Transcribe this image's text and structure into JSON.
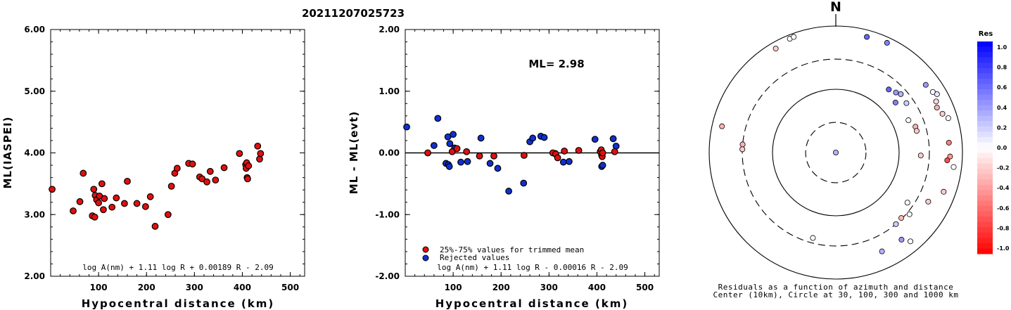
{
  "title": "20211207025723",
  "chart_data": [
    {
      "type": "scatter",
      "ylabel": "ML(IASPEI)",
      "xlabel": "Hypocentral distance (km)",
      "xlim": [
        0,
        530
      ],
      "ylim": [
        2.0,
        6.0
      ],
      "x_ticks": [
        100,
        200,
        300,
        400,
        500
      ],
      "y_ticks": [
        "2.00",
        "3.00",
        "4.00",
        "5.00",
        "6.00"
      ],
      "formula": "log A(nm) + 1.11 log R + 0.00189 R - 2.09",
      "marker_color": "#e01010",
      "points": [
        [
          3,
          3.41
        ],
        [
          47,
          3.06
        ],
        [
          61,
          3.21
        ],
        [
          68,
          3.67
        ],
        [
          87,
          2.98
        ],
        [
          90,
          3.41
        ],
        [
          92,
          2.96
        ],
        [
          93,
          3.31
        ],
        [
          96,
          3.24
        ],
        [
          100,
          3.19
        ],
        [
          102,
          3.3
        ],
        [
          107,
          3.5
        ],
        [
          110,
          3.08
        ],
        [
          112,
          3.26
        ],
        [
          128,
          3.12
        ],
        [
          137,
          3.27
        ],
        [
          154,
          3.18
        ],
        [
          160,
          3.54
        ],
        [
          180,
          3.18
        ],
        [
          198,
          3.13
        ],
        [
          208,
          3.29
        ],
        [
          218,
          2.81
        ],
        [
          245,
          3.0
        ],
        [
          252,
          3.46
        ],
        [
          259,
          3.67
        ],
        [
          264,
          3.75
        ],
        [
          288,
          3.83
        ],
        [
          296,
          3.82
        ],
        [
          311,
          3.61
        ],
        [
          316,
          3.58
        ],
        [
          326,
          3.53
        ],
        [
          333,
          3.7
        ],
        [
          344,
          3.56
        ],
        [
          362,
          3.76
        ],
        [
          394,
          3.99
        ],
        [
          407,
          3.81
        ],
        [
          408,
          3.75
        ],
        [
          409,
          3.84
        ],
        [
          410,
          3.6
        ],
        [
          411,
          3.58
        ],
        [
          413,
          3.79
        ],
        [
          432,
          4.11
        ],
        [
          436,
          3.9
        ],
        [
          438,
          3.99
        ]
      ]
    },
    {
      "type": "scatter",
      "ylabel": "ML - ML(evt)",
      "xlabel": "Hypocentral distance (km)",
      "xlim": [
        0,
        530
      ],
      "ylim": [
        -2.0,
        2.0
      ],
      "x_ticks": [
        100,
        200,
        300,
        400,
        500
      ],
      "y_ticks": [
        "-2.00",
        "-1.00",
        "0.00",
        "1.00",
        "2.00"
      ],
      "annotation": "ML= 2.98",
      "formula": "log A(nm) + 1.11 log R - 0.00016 R - 2.09",
      "legend": [
        {
          "label": "25%-75% values for trimmed mean",
          "color": "#e01010"
        },
        {
          "label": "Rejected values",
          "color": "#1030d0"
        }
      ],
      "series": [
        {
          "name": "25%-75% values for trimmed mean",
          "color": "#e01010",
          "points": [
            [
              47,
              0.0
            ],
            [
              98,
              0.02
            ],
            [
              108,
              0.07
            ],
            [
              128,
              0.02
            ],
            [
              155,
              -0.05
            ],
            [
              185,
              -0.05
            ],
            [
              248,
              -0.04
            ],
            [
              308,
              0.0
            ],
            [
              314,
              -0.02
            ],
            [
              318,
              -0.08
            ],
            [
              332,
              0.03
            ],
            [
              362,
              0.04
            ],
            [
              407,
              0.02
            ],
            [
              409,
              0.05
            ],
            [
              410,
              -0.04
            ],
            [
              411,
              -0.06
            ],
            [
              412,
              0.0
            ],
            [
              437,
              0.02
            ]
          ]
        },
        {
          "name": "Rejected values",
          "color": "#1030d0",
          "points": [
            [
              3,
              0.42
            ],
            [
              60,
              0.12
            ],
            [
              68,
              0.56
            ],
            [
              85,
              -0.17
            ],
            [
              89,
              0.26
            ],
            [
              90,
              -0.19
            ],
            [
              92,
              -0.22
            ],
            [
              93,
              0.15
            ],
            [
              100,
              0.3
            ],
            [
              103,
              0.08
            ],
            [
              116,
              -0.15
            ],
            [
              130,
              -0.14
            ],
            [
              158,
              0.24
            ],
            [
              177,
              -0.17
            ],
            [
              193,
              -0.25
            ],
            [
              216,
              -0.62
            ],
            [
              247,
              -0.49
            ],
            [
              260,
              0.18
            ],
            [
              266,
              0.24
            ],
            [
              283,
              0.27
            ],
            [
              290,
              0.25
            ],
            [
              313,
              -0.01
            ],
            [
              330,
              -0.15
            ],
            [
              342,
              -0.14
            ],
            [
              396,
              0.22
            ],
            [
              410,
              -0.22
            ],
            [
              412,
              -0.2
            ],
            [
              434,
              0.23
            ],
            [
              440,
              0.11
            ]
          ]
        }
      ]
    },
    {
      "type": "polar-scatter",
      "north_label": "N",
      "rings_km": [
        10,
        30,
        100,
        300,
        1000
      ],
      "caption_line1": "Residuals as a function of azimuth and distance",
      "caption_line2": "Center (10km), Circle at 30, 100, 300 and 1000 km",
      "colorbar": {
        "title": "Res",
        "ticks": [
          "1.0",
          "0.8",
          "0.6",
          "0.4",
          "0.2",
          "0.0",
          "-0.2",
          "-0.4",
          "-0.6",
          "-0.8",
          "-1.0"
        ]
      },
      "stations": [
        {
          "az": 90,
          "dist": 10,
          "res": 0.3
        },
        {
          "az": 15,
          "dist": 780,
          "res": 0.6
        },
        {
          "az": 25,
          "dist": 820,
          "res": 0.5
        },
        {
          "az": 40,
          "dist": 200,
          "res": 0.6
        },
        {
          "az": 45,
          "dist": 220,
          "res": 0.4
        },
        {
          "az": 48,
          "dist": 240,
          "res": 0.3
        },
        {
          "az": 50,
          "dist": 170,
          "res": 0.5
        },
        {
          "az": 55,
          "dist": 230,
          "res": 0.2
        },
        {
          "az": 53,
          "dist": 600,
          "res": 0.4
        },
        {
          "az": 58,
          "dist": 640,
          "res": 0.0
        },
        {
          "az": 60,
          "dist": 700,
          "res": 0.1
        },
        {
          "az": 63,
          "dist": 600,
          "res": -0.15
        },
        {
          "az": 66,
          "dist": 560,
          "res": -0.3
        },
        {
          "az": 70,
          "dist": 620,
          "res": -0.2
        },
        {
          "az": 73,
          "dist": 720,
          "res": 0.0
        },
        {
          "az": 66,
          "dist": 180,
          "res": 0.0
        },
        {
          "az": 72,
          "dist": 210,
          "res": -0.3
        },
        {
          "az": 75,
          "dist": 210,
          "res": -0.2
        },
        {
          "az": 85,
          "dist": 620,
          "res": -0.5
        },
        {
          "az": 92,
          "dist": 640,
          "res": -0.4
        },
        {
          "az": 94,
          "dist": 580,
          "res": -0.7
        },
        {
          "az": 97,
          "dist": 750,
          "res": 0.0
        },
        {
          "az": 92,
          "dist": 220,
          "res": -0.2
        },
        {
          "az": 110,
          "dist": 650,
          "res": -0.2
        },
        {
          "az": 118,
          "dist": 450,
          "res": -0.2
        },
        {
          "az": 125,
          "dist": 240,
          "res": 0.0
        },
        {
          "az": 130,
          "dist": 330,
          "res": 0.0
        },
        {
          "az": 135,
          "dist": 290,
          "res": -0.3
        },
        {
          "az": 140,
          "dist": 300,
          "res": 0.2
        },
        {
          "az": 140,
          "dist": 680,
          "res": 0.0
        },
        {
          "az": 143,
          "dist": 530,
          "res": 0.4
        },
        {
          "az": 155,
          "dist": 530,
          "res": 0.3
        },
        {
          "az": 195,
          "dist": 250,
          "res": 0.0
        },
        {
          "az": 275,
          "dist": 300,
          "res": -0.3
        },
        {
          "az": 272,
          "dist": 300,
          "res": -0.2
        },
        {
          "az": 283,
          "dist": 700,
          "res": -0.3
        },
        {
          "az": 330,
          "dist": 790,
          "res": -0.2
        },
        {
          "az": 338,
          "dist": 870,
          "res": 0.0
        },
        {
          "az": 340,
          "dist": 880,
          "res": 0.0
        }
      ]
    }
  ]
}
